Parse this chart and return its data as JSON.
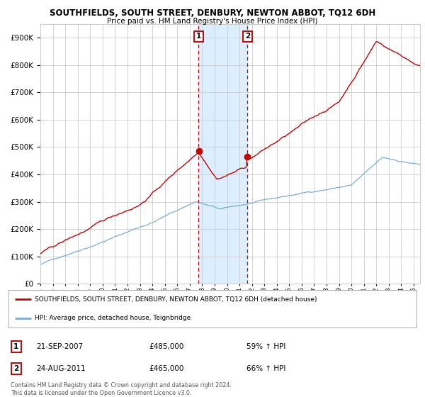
{
  "title": "SOUTHFIELDS, SOUTH STREET, DENBURY, NEWTON ABBOT, TQ12 6DH",
  "subtitle": "Price paid vs. HM Land Registry's House Price Index (HPI)",
  "hpi_label": "HPI: Average price, detached house, Teignbridge",
  "property_label": "SOUTHFIELDS, SOUTH STREET, DENBURY, NEWTON ABBOT, TQ12 6DH (detached house)",
  "legend_footnote": "Contains HM Land Registry data © Crown copyright and database right 2024.\nThis data is licensed under the Open Government Licence v3.0.",
  "sale1_date": "21-SEP-2007",
  "sale1_price": "£485,000",
  "sale1_hpi": "59% ↑ HPI",
  "sale2_date": "24-AUG-2011",
  "sale2_price": "£465,000",
  "sale2_hpi": "66% ↑ HPI",
  "ylim": [
    0,
    950000
  ],
  "yticks": [
    0,
    100000,
    200000,
    300000,
    400000,
    500000,
    600000,
    700000,
    800000,
    900000
  ],
  "red_color": "#cc0000",
  "blue_color": "#7aadd4",
  "highlight_color": "#ddeeff",
  "dashed_color": "#cc0000",
  "background_color": "#ffffff",
  "grid_color": "#cccccc",
  "sale1_year": 2007.72,
  "sale2_year": 2011.65,
  "start_year": 1995.0,
  "end_year": 2025.5
}
